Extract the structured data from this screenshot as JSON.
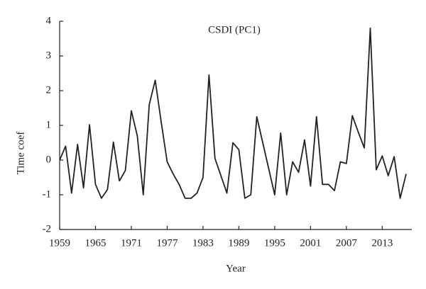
{
  "chart_data": {
    "type": "line",
    "title": "CSDI (PC1)",
    "x_label": "Year",
    "y_label": "Time coef",
    "x": [
      1959,
      1960,
      1961,
      1962,
      1963,
      1964,
      1965,
      1966,
      1967,
      1968,
      1969,
      1970,
      1971,
      1972,
      1973,
      1974,
      1975,
      1976,
      1977,
      1978,
      1979,
      1980,
      1981,
      1982,
      1983,
      1984,
      1985,
      1986,
      1987,
      1988,
      1989,
      1990,
      1991,
      1992,
      1993,
      1994,
      1995,
      1996,
      1997,
      1998,
      1999,
      2000,
      2001,
      2002,
      2003,
      2004,
      2005,
      2006,
      2007,
      2008,
      2009,
      2010,
      2011,
      2012,
      2013,
      2014,
      2015,
      2016,
      2017
    ],
    "values": [
      0,
      0.4,
      -0.95,
      0.45,
      -0.8,
      1.02,
      -0.7,
      -1.1,
      -0.85,
      0.52,
      -0.6,
      -0.3,
      1.42,
      0.7,
      -1.0,
      1.6,
      2.3,
      1.1,
      -0.05,
      -0.4,
      -0.7,
      -1.1,
      -1.1,
      -0.95,
      -0.5,
      2.45,
      0.05,
      -0.45,
      -0.95,
      0.5,
      0.3,
      -1.1,
      -1.0,
      1.25,
      0.5,
      -0.25,
      -1.0,
      0.78,
      -1.0,
      -0.05,
      -0.35,
      0.58,
      -0.75,
      1.25,
      -0.7,
      -0.7,
      -0.88,
      -0.05,
      -0.1,
      1.28,
      0.8,
      0.35,
      3.8,
      -0.28,
      0.12,
      -0.45,
      0.1,
      -1.1,
      -0.4
    ],
    "color": "#222222",
    "xlim": [
      1959,
      2017
    ],
    "xticks": [
      1959,
      1965,
      1971,
      1977,
      1983,
      1989,
      1995,
      2001,
      2007,
      2013
    ],
    "ylim": [
      -2,
      4
    ],
    "yticks": [
      -2,
      -1,
      0,
      1,
      2,
      3,
      4
    ]
  }
}
